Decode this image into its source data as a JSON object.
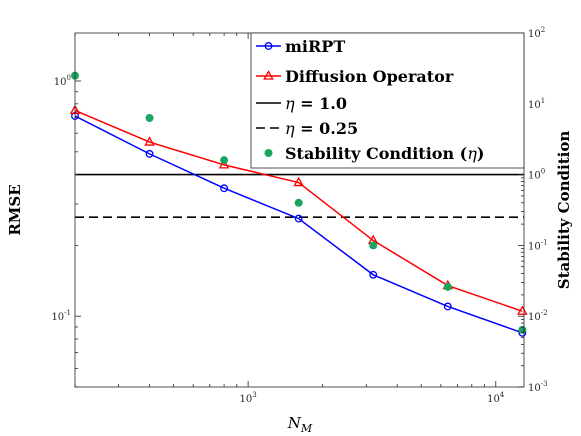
{
  "chart_data": {
    "type": "line",
    "xlabel": "N_M",
    "xlabel_main": "N",
    "xlabel_sub": "M",
    "ylabel_left": "RMSE",
    "ylabel_right": "Stability Condition",
    "x_scale": "log",
    "y_scale": "log",
    "xlim": [
      200,
      13000
    ],
    "ylim_left": [
      0.05,
      1.6
    ],
    "ylim_right": [
      0.001,
      100
    ],
    "grid": false,
    "legend_position": "top-right",
    "x_ticks": [
      {
        "value": 1000,
        "base": "10",
        "exp": "3"
      },
      {
        "value": 10000,
        "base": "10",
        "exp": "4"
      }
    ],
    "y_left_ticks": [
      {
        "value": 0.1,
        "base": "10",
        "exp": "-1"
      },
      {
        "value": 1,
        "base": "10",
        "exp": "0"
      }
    ],
    "y_right_ticks": [
      {
        "value": 0.001,
        "base": "10",
        "exp": "-3"
      },
      {
        "value": 0.01,
        "base": "10",
        "exp": "-2"
      },
      {
        "value": 0.1,
        "base": "10",
        "exp": "-1"
      },
      {
        "value": 1,
        "base": "10",
        "exp": "0"
      },
      {
        "value": 10,
        "base": "10",
        "exp": "1"
      },
      {
        "value": 100,
        "base": "10",
        "exp": "2"
      }
    ],
    "series": [
      {
        "name": "miRPT",
        "axis": "left",
        "style": "line-circle",
        "color": "#0000ff",
        "x": [
          200,
          400,
          800,
          1600,
          3200,
          6400,
          12800
        ],
        "y": [
          0.71,
          0.49,
          0.35,
          0.26,
          0.15,
          0.11,
          0.085
        ]
      },
      {
        "name": "Diffusion Operator",
        "axis": "left",
        "style": "line-triangle",
        "color": "#ff0000",
        "x": [
          200,
          400,
          800,
          1600,
          3200,
          6400,
          12800
        ],
        "y": [
          0.75,
          0.55,
          0.44,
          0.37,
          0.21,
          0.135,
          0.105
        ]
      },
      {
        "name": "Stability Condition",
        "name_prefix": "Stability Condition (",
        "name_symbol": "η",
        "name_suffix": ")",
        "axis": "right",
        "style": "scatter",
        "color": "#1aa560",
        "x": [
          200,
          400,
          800,
          1600,
          3200,
          6400,
          12800
        ],
        "y": [
          25,
          6.3,
          1.6,
          0.4,
          0.1,
          0.026,
          0.0064
        ]
      }
    ],
    "reference_lines": [
      {
        "name_symbol": "η",
        "name_value": " = 1.0",
        "axis": "right",
        "value": 1.0,
        "style": "solid",
        "color": "#000000"
      },
      {
        "name_symbol": "η",
        "name_value": " = 0.25",
        "axis": "right",
        "value": 0.25,
        "style": "dashed",
        "color": "#000000"
      }
    ]
  }
}
